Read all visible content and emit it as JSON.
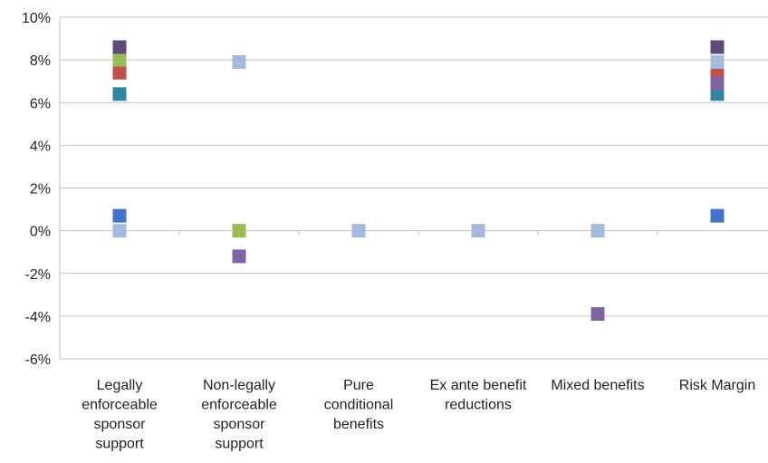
{
  "chart_data": {
    "type": "scatter",
    "title": "",
    "xlabel": "",
    "ylabel": "",
    "ylim": [
      -6,
      10
    ],
    "y_tick_labels": [
      "10%",
      "8%",
      "6%",
      "4%",
      "2%",
      "0%",
      "-2%",
      "-4%",
      "-6%"
    ],
    "y_tick_values": [
      10,
      8,
      6,
      4,
      2,
      0,
      -2,
      -4,
      -6
    ],
    "grid": true,
    "legend": "none",
    "categories": [
      "Legally enforceable sponsor support",
      "Non-legally enforceable sponsor support",
      "Pure conditional benefits",
      "Ex ante benefit reductions",
      "Mixed benefits",
      "Risk Margin"
    ],
    "category_label_lines": [
      [
        "Legally",
        "enforceable",
        "sponsor",
        "support"
      ],
      [
        "Non-legally",
        "enforceable",
        "sponsor",
        "support"
      ],
      [
        "Pure",
        "conditional",
        "benefits"
      ],
      [
        "Ex ante benefit",
        "reductions"
      ],
      [
        "Mixed benefits"
      ],
      [
        "Risk Margin"
      ]
    ],
    "series": [
      {
        "color": "#4472C4",
        "values": [
          0.7,
          null,
          null,
          null,
          null,
          0.7
        ]
      },
      {
        "color": "#31859C",
        "values": [
          6.4,
          null,
          null,
          null,
          null,
          6.4
        ]
      },
      {
        "color": "#C0504D",
        "values": [
          7.4,
          null,
          null,
          null,
          null,
          7.4
        ]
      },
      {
        "color": "#9BBB59",
        "values": [
          8.0,
          0.0,
          null,
          null,
          null,
          null
        ]
      },
      {
        "color": "#8064A2",
        "values": [
          null,
          -1.2,
          null,
          null,
          -3.9,
          6.9
        ]
      },
      {
        "color": "#604A7B",
        "values": [
          8.6,
          null,
          null,
          null,
          null,
          8.6
        ]
      },
      {
        "color": "#A6B9DA",
        "values": [
          0.0,
          7.9,
          0.0,
          0.0,
          0.0,
          7.9
        ]
      }
    ]
  }
}
